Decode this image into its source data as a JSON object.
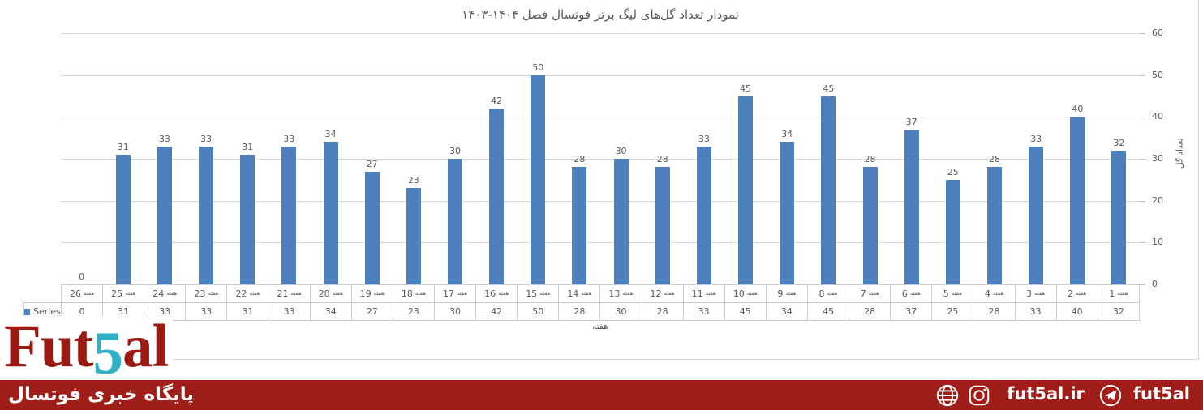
{
  "chart_data": {
    "type": "bar",
    "title": "نمودار تعداد گل‌های لیگ برتر فوتسال فصل ۱۴۰۴-۱۴۰۳",
    "categories": [
      "هفته 1",
      "هفته 2",
      "هفته 3",
      "هفته 4",
      "هفته 5",
      "هفته 6",
      "هفته 7",
      "هفته 8",
      "هفته 9",
      "هفته 10",
      "هفته 11",
      "هفته 12",
      "هفته 13",
      "هفته 14",
      "هفته 15",
      "هفته 16",
      "هفته 17",
      "هفته 18",
      "هفته 19",
      "هفته 20",
      "هفته 21",
      "هفته 22",
      "هفته 23",
      "هفته 24",
      "هفته 25",
      "هفته 26"
    ],
    "series": [
      {
        "name": "Series1",
        "values": [
          32,
          40,
          33,
          28,
          25,
          37,
          28,
          45,
          34,
          45,
          33,
          28,
          30,
          28,
          50,
          42,
          30,
          23,
          27,
          34,
          33,
          31,
          33,
          33,
          31,
          0
        ]
      }
    ],
    "xlabel": "هفته",
    "ylabel": "تعداد گل",
    "ylim": [
      0,
      60
    ],
    "yticks": [
      0,
      10,
      20,
      30,
      40,
      50,
      60
    ],
    "grid": true,
    "data_labels": true,
    "legend_position": "left-of-data-table",
    "category_order": "right-to-left",
    "bar_color": "#4d80bd",
    "label_color": "#595959"
  },
  "footer": {
    "logo_text": {
      "fut": "Fut",
      "five": "5",
      "al": "al"
    },
    "tagline": "پایگاه خبری فوتسال",
    "website": "fut5al.ir",
    "telegram_handle": "fut5al",
    "colors": {
      "bar_red": "#a01e19",
      "logo_maroon": "#9c1a12",
      "logo_teal": "#2fb0c7"
    }
  }
}
